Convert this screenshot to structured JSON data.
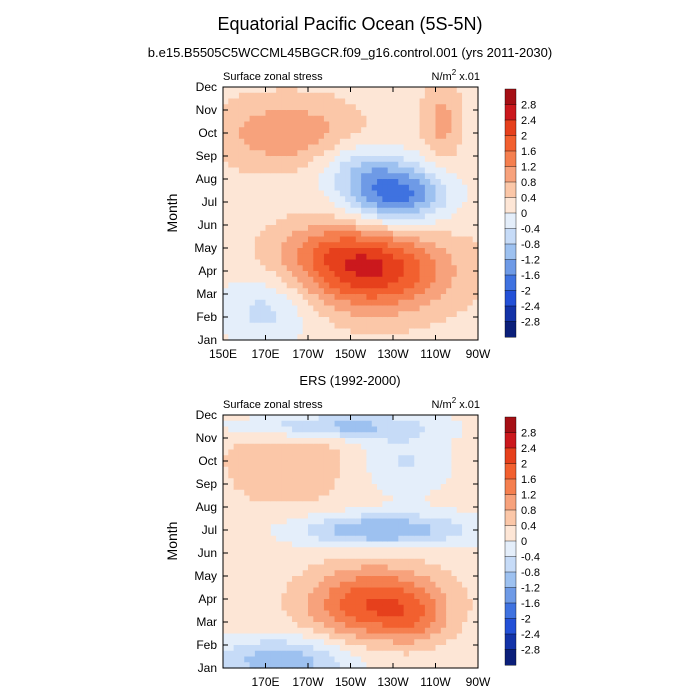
{
  "title": "Equatorial Pacific Ocean (5S-5N)",
  "colorbar": {
    "labels": [
      "2.8",
      "2.4",
      "2",
      "1.6",
      "1.2",
      "0.8",
      "0.4",
      "0",
      "-0.4",
      "-0.8",
      "-1.2",
      "-1.6",
      "-2",
      "-2.4",
      "-2.8"
    ],
    "colors": [
      "#a50f15",
      "#cb181d",
      "#e6401c",
      "#f2602f",
      "#f57f4f",
      "#f7a27c",
      "#fbc7a8",
      "#fde6d6",
      "#e4eefa",
      "#c6dbf7",
      "#9dc1f0",
      "#6e9ae6",
      "#3f72e0",
      "#2350d7",
      "#1333a8",
      "#0b1f7a"
    ]
  },
  "chart_data": [
    {
      "type": "heatmap",
      "subtitle": "b.e15.B5505C5WCCML45BGCR.f09_g16.control.001 (yrs 2011-2030)",
      "left_label": "Surface zonal stress",
      "right_label": "N/m",
      "right_sup": "2",
      "right_suffix": " x.01",
      "ylabel": "Month",
      "y_ticks": [
        "Jan",
        "Feb",
        "Mar",
        "Apr",
        "May",
        "Jun",
        "Jul",
        "Aug",
        "Sep",
        "Oct",
        "Nov",
        "Dec"
      ],
      "x_ticks": [
        "150E",
        "170E",
        "170W",
        "150W",
        "130W",
        "110W",
        "90W"
      ],
      "x_range": [
        150,
        270
      ],
      "xlabel": "",
      "features": [
        {
          "x": 220,
          "m": 4.0,
          "sx": 24,
          "sy": 1.2,
          "a": 2.1
        },
        {
          "x": 200,
          "m": 5.0,
          "sx": 18,
          "sy": 0.8,
          "a": 0.6
        },
        {
          "x": 232,
          "m": 7.3,
          "sx": 16,
          "sy": 0.9,
          "a": -2.0
        },
        {
          "x": 215,
          "m": 8.5,
          "sx": 14,
          "sy": 0.8,
          "a": -0.8
        },
        {
          "x": 180,
          "m": 10.0,
          "sx": 22,
          "sy": 1.0,
          "a": 0.9
        },
        {
          "x": 170,
          "m": 2.3,
          "sx": 16,
          "sy": 1.1,
          "a": -0.8
        },
        {
          "x": 253,
          "m": 10.5,
          "sx": 6,
          "sy": 1.2,
          "a": 0.7
        }
      ],
      "background": 0.25
    },
    {
      "type": "heatmap",
      "subtitle": "ERS (1992-2000)",
      "left_label": "Surface zonal stress",
      "right_label": "N/m",
      "right_sup": "2",
      "right_suffix": " x.01",
      "ylabel": "Month",
      "y_ticks": [
        "Jan",
        "Feb",
        "Mar",
        "Apr",
        "May",
        "Jun",
        "Jul",
        "Aug",
        "Sep",
        "Oct",
        "Nov",
        "Dec"
      ],
      "x_ticks": [
        "170E",
        "170W",
        "150W",
        "130W",
        "110W",
        "90W"
      ],
      "x_range": [
        150,
        270
      ],
      "xlabel": "",
      "features": [
        {
          "x": 222,
          "m": 3.8,
          "sx": 22,
          "sy": 1.1,
          "a": 1.9
        },
        {
          "x": 240,
          "m": 3.0,
          "sx": 10,
          "sy": 0.7,
          "a": 0.5
        },
        {
          "x": 225,
          "m": 7.0,
          "sx": 28,
          "sy": 0.5,
          "a": -1.4
        },
        {
          "x": 178,
          "m": 1.3,
          "sx": 22,
          "sy": 0.7,
          "a": -1.3
        },
        {
          "x": 200,
          "m": 11.5,
          "sx": 30,
          "sy": 0.4,
          "a": -1.2
        },
        {
          "x": 235,
          "m": 10.0,
          "sx": 14,
          "sy": 1.0,
          "a": -0.6
        },
        {
          "x": 180,
          "m": 10.0,
          "sx": 22,
          "sy": 1.5,
          "a": 0.6
        }
      ],
      "background": 0.15
    }
  ]
}
